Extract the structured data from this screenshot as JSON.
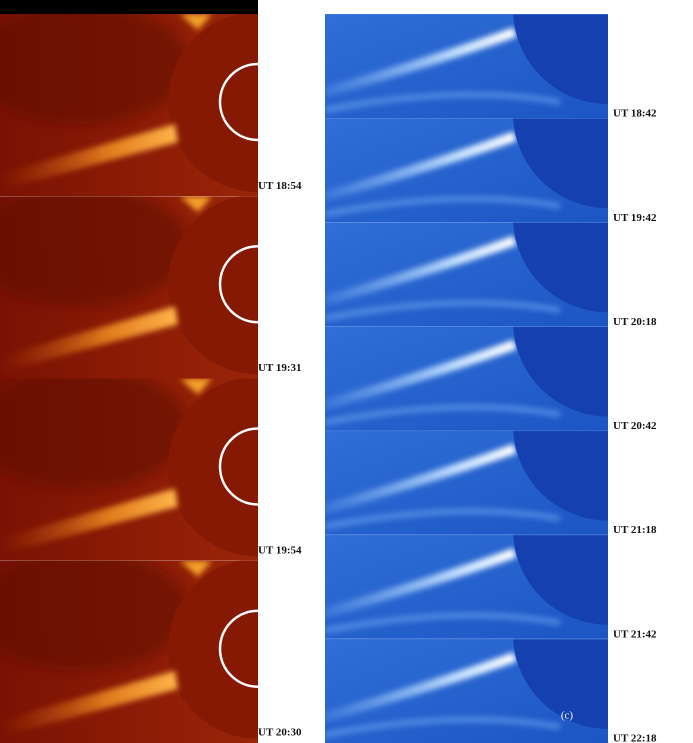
{
  "left": {
    "frames": [
      {
        "label": "UT 18:54"
      },
      {
        "label": "UT 19:31"
      },
      {
        "label": "UT 19:54"
      },
      {
        "label": "UT 20:30"
      }
    ]
  },
  "right": {
    "frames": [
      {
        "label": "UT 18:42"
      },
      {
        "label": "UT 19:42"
      },
      {
        "label": "UT 20:18"
      },
      {
        "label": "UT 20:42"
      },
      {
        "label": "UT 21:18"
      },
      {
        "label": "UT 21:42"
      },
      {
        "label": "UT 22:18"
      }
    ],
    "panel_label": "(c)"
  }
}
